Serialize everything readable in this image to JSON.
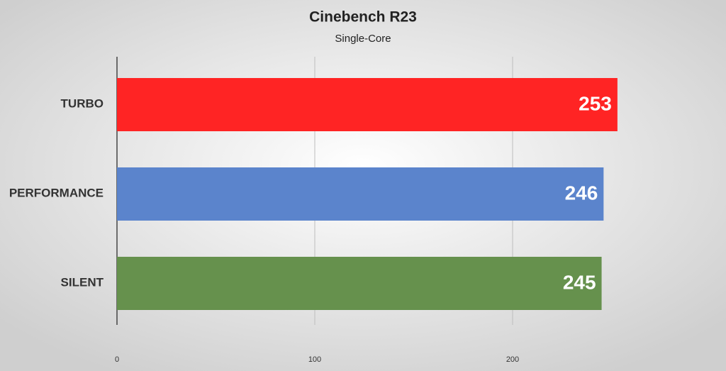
{
  "chart_data": {
    "type": "barh",
    "title": "Cinebench R23",
    "subtitle": "Single-Core",
    "categories": [
      "TURBO",
      "PERFORMANCE",
      "SILENT"
    ],
    "values": [
      253,
      246,
      245
    ],
    "colors": [
      "#ff2424",
      "#5b84cc",
      "#66914d"
    ],
    "xlim": [
      0,
      300
    ],
    "xticks": [
      0,
      100,
      200
    ],
    "grid": true
  }
}
